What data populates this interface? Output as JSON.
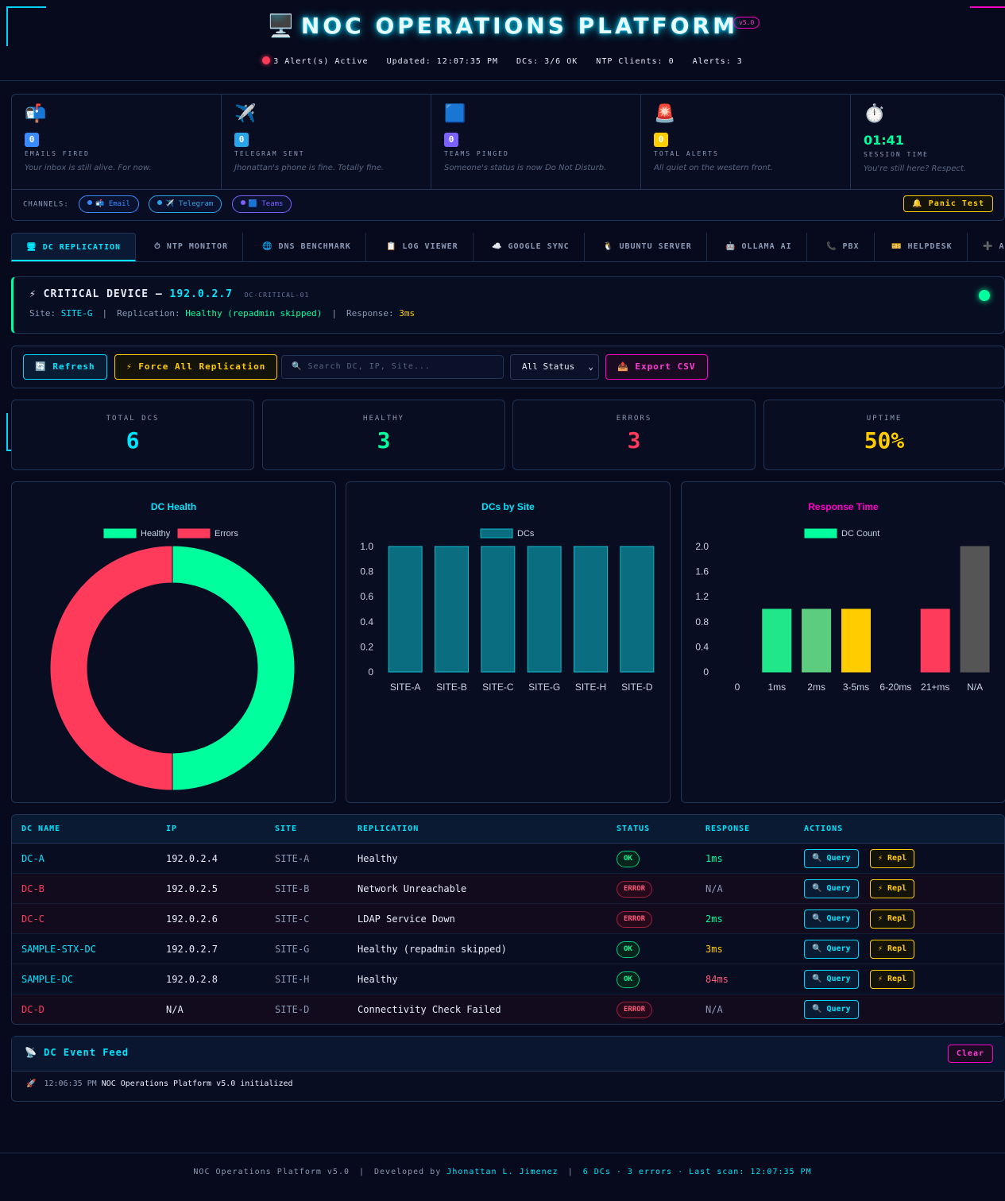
{
  "header": {
    "title_icon": "🖥️",
    "title": "NOC OPERATIONS PLATFORM",
    "version": "v5.0",
    "alerts_active": "3 Alert(s) Active",
    "updated": "Updated: 12:07:35 PM",
    "dcs_ok": "DCs: 3/6 OK",
    "ntp_clients": "NTP Clients: 0",
    "alerts": "Alerts: 3"
  },
  "stats": [
    {
      "icon": "📬",
      "count": "0",
      "label": "EMAILS FIRED",
      "sub": "Your inbox is still alive. For now.",
      "color": "#3a8bff"
    },
    {
      "icon": "✈️",
      "count": "0",
      "label": "TELEGRAM SENT",
      "sub": "Jhonattan's phone is fine. Totally fine.",
      "color": "#2aa5e8"
    },
    {
      "icon": "🟦",
      "count": "0",
      "label": "TEAMS PINGED",
      "sub": "Someone's status is now Do Not Disturb.",
      "color": "#7b61ff"
    },
    {
      "icon": "🚨",
      "count": "0",
      "label": "TOTAL ALERTS",
      "sub": "All quiet on the western front.",
      "color": "#ffcc00"
    }
  ],
  "session": {
    "icon": "⏱️",
    "time": "01:41",
    "label": "SESSION TIME",
    "sub": "You're still here? Respect."
  },
  "channels": {
    "label": "CHANNELS:",
    "items": [
      {
        "label": "📬 Email",
        "color": "#3a8bff"
      },
      {
        "label": "✈️ Telegram",
        "color": "#2aa5e8"
      },
      {
        "label": "🟦 Teams",
        "color": "#7b61ff"
      }
    ],
    "panic": "🔔 Panic Test"
  },
  "tabs": [
    {
      "label": "🖥 DC REPLICATION"
    },
    {
      "label": "⏱ NTP MONITOR"
    },
    {
      "label": "🌐 DNS BENCHMARK"
    },
    {
      "label": "📋 LOG VIEWER"
    },
    {
      "label": "☁️ GOOGLE SYNC"
    },
    {
      "label": "🐧 UBUNTU SERVER"
    },
    {
      "label": "🤖 OLLAMA AI"
    },
    {
      "label": "📞 PBX"
    },
    {
      "label": "🎫 HELPDESK"
    },
    {
      "label": "➕ A"
    }
  ],
  "critical": {
    "prefix": "⚡ CRITICAL DEVICE —",
    "ip": "192.0.2.7",
    "tag": "DC-CRITICAL-01",
    "site_label": "Site:",
    "site": "SITE-G",
    "repl_label": "Replication:",
    "repl": "Healthy (repadmin skipped)",
    "resp_label": "Response:",
    "resp": "3ms"
  },
  "toolbar": {
    "refresh": "🔄 Refresh",
    "force": "⚡ Force All Replication",
    "search_placeholder": "🔍 Search DC, IP, Site...",
    "status_select": "All Status",
    "export": "📤 Export CSV"
  },
  "summary": [
    {
      "label": "TOTAL DCS",
      "value": "6",
      "color": "#00e5ff"
    },
    {
      "label": "HEALTHY",
      "value": "3",
      "color": "#00ff9d"
    },
    {
      "label": "ERRORS",
      "value": "3",
      "color": "#ff3b5c"
    },
    {
      "label": "UPTIME",
      "value": "50%",
      "color": "#ffcc00"
    }
  ],
  "chart_data": [
    {
      "type": "pie",
      "title": "DC Health",
      "title_color": "#00e5ff",
      "categories": [
        "Healthy",
        "Errors"
      ],
      "values": [
        3,
        3
      ],
      "colors": [
        "#00ff9d",
        "#ff3b5c"
      ]
    },
    {
      "type": "bar",
      "title": "DCs by Site",
      "title_color": "#00e5ff",
      "categories": [
        "SITE-A",
        "SITE-B",
        "SITE-C",
        "SITE-G",
        "SITE-H",
        "SITE-D"
      ],
      "series": [
        {
          "name": "DCs",
          "values": [
            1,
            1,
            1,
            1,
            1,
            1
          ]
        }
      ],
      "color": "#0a6d80",
      "border": "#0fb6cc",
      "ylim": [
        0,
        1.0
      ],
      "yticks": [
        "0",
        "0.2",
        "0.4",
        "0.6",
        "0.8",
        "1.0"
      ]
    },
    {
      "type": "bar",
      "title": "Response Time",
      "title_color": "#ff00c8",
      "categories": [
        "0",
        "1ms",
        "2ms",
        "3-5ms",
        "6-20ms",
        "21+ms",
        "N/A"
      ],
      "series": [
        {
          "name": "DC Count",
          "values": [
            0,
            1,
            1,
            1,
            0,
            1,
            2
          ]
        }
      ],
      "colors": [
        "#00ff9d",
        "#20e88a",
        "#5ccd7e",
        "#ffcc00",
        "#ff8a00",
        "#ff3b5c",
        "#555555"
      ],
      "legend_color": "#00ff9d",
      "ylim": [
        0,
        2.0
      ],
      "yticks": [
        "0",
        "0.4",
        "0.8",
        "1.2",
        "1.6",
        "2.0"
      ]
    }
  ],
  "table": {
    "headers": [
      "DC NAME",
      "IP",
      "SITE",
      "REPLICATION",
      "STATUS",
      "RESPONSE",
      "ACTIONS"
    ],
    "query_label": "🔍 Query",
    "repl_label": "⚡ Repl",
    "rows": [
      {
        "name": "DC-A",
        "ip": "192.0.2.4",
        "site": "SITE-A",
        "repl": "Healthy",
        "status": "OK",
        "response": "1ms",
        "ok": true,
        "resp_color": "#00ff9d",
        "has_repl": true
      },
      {
        "name": "DC-B",
        "ip": "192.0.2.5",
        "site": "SITE-B",
        "repl": "Network Unreachable",
        "status": "ERROR",
        "response": "N/A",
        "ok": false,
        "resp_color": "#8a99b5",
        "has_repl": true
      },
      {
        "name": "DC-C",
        "ip": "192.0.2.6",
        "site": "SITE-C",
        "repl": "LDAP Service Down",
        "status": "ERROR",
        "response": "2ms",
        "ok": false,
        "resp_color": "#00ff9d",
        "has_repl": true
      },
      {
        "name": "SAMPLE-STX-DC",
        "ip": "192.0.2.7",
        "site": "SITE-G",
        "repl": "Healthy (repadmin skipped)",
        "status": "OK",
        "response": "3ms",
        "ok": true,
        "resp_color": "#ffcc00",
        "has_repl": true
      },
      {
        "name": "SAMPLE-DC",
        "ip": "192.0.2.8",
        "site": "SITE-H",
        "repl": "Healthy",
        "status": "OK",
        "response": "84ms",
        "ok": true,
        "resp_color": "#ff5b7a",
        "has_repl": true
      },
      {
        "name": "DC-D",
        "ip": "N/A",
        "site": "SITE-D",
        "repl": "Connectivity Check Failed",
        "status": "ERROR",
        "response": "N/A",
        "ok": false,
        "resp_color": "#8a99b5",
        "has_repl": false
      }
    ]
  },
  "feed": {
    "title": "📡 DC Event Feed",
    "clear": "Clear",
    "entries": [
      {
        "icon": "🚀",
        "time": "12:06:35 PM",
        "text": "NOC Operations Platform v5.0 initialized"
      }
    ]
  },
  "footer": {
    "platform": "NOC Operations Platform v5.0",
    "dev_prefix": "Developed by",
    "dev_name": "Jhonattan L. Jimenez",
    "summary": "6 DCs · 3 errors · Last scan: 12:07:35 PM"
  }
}
